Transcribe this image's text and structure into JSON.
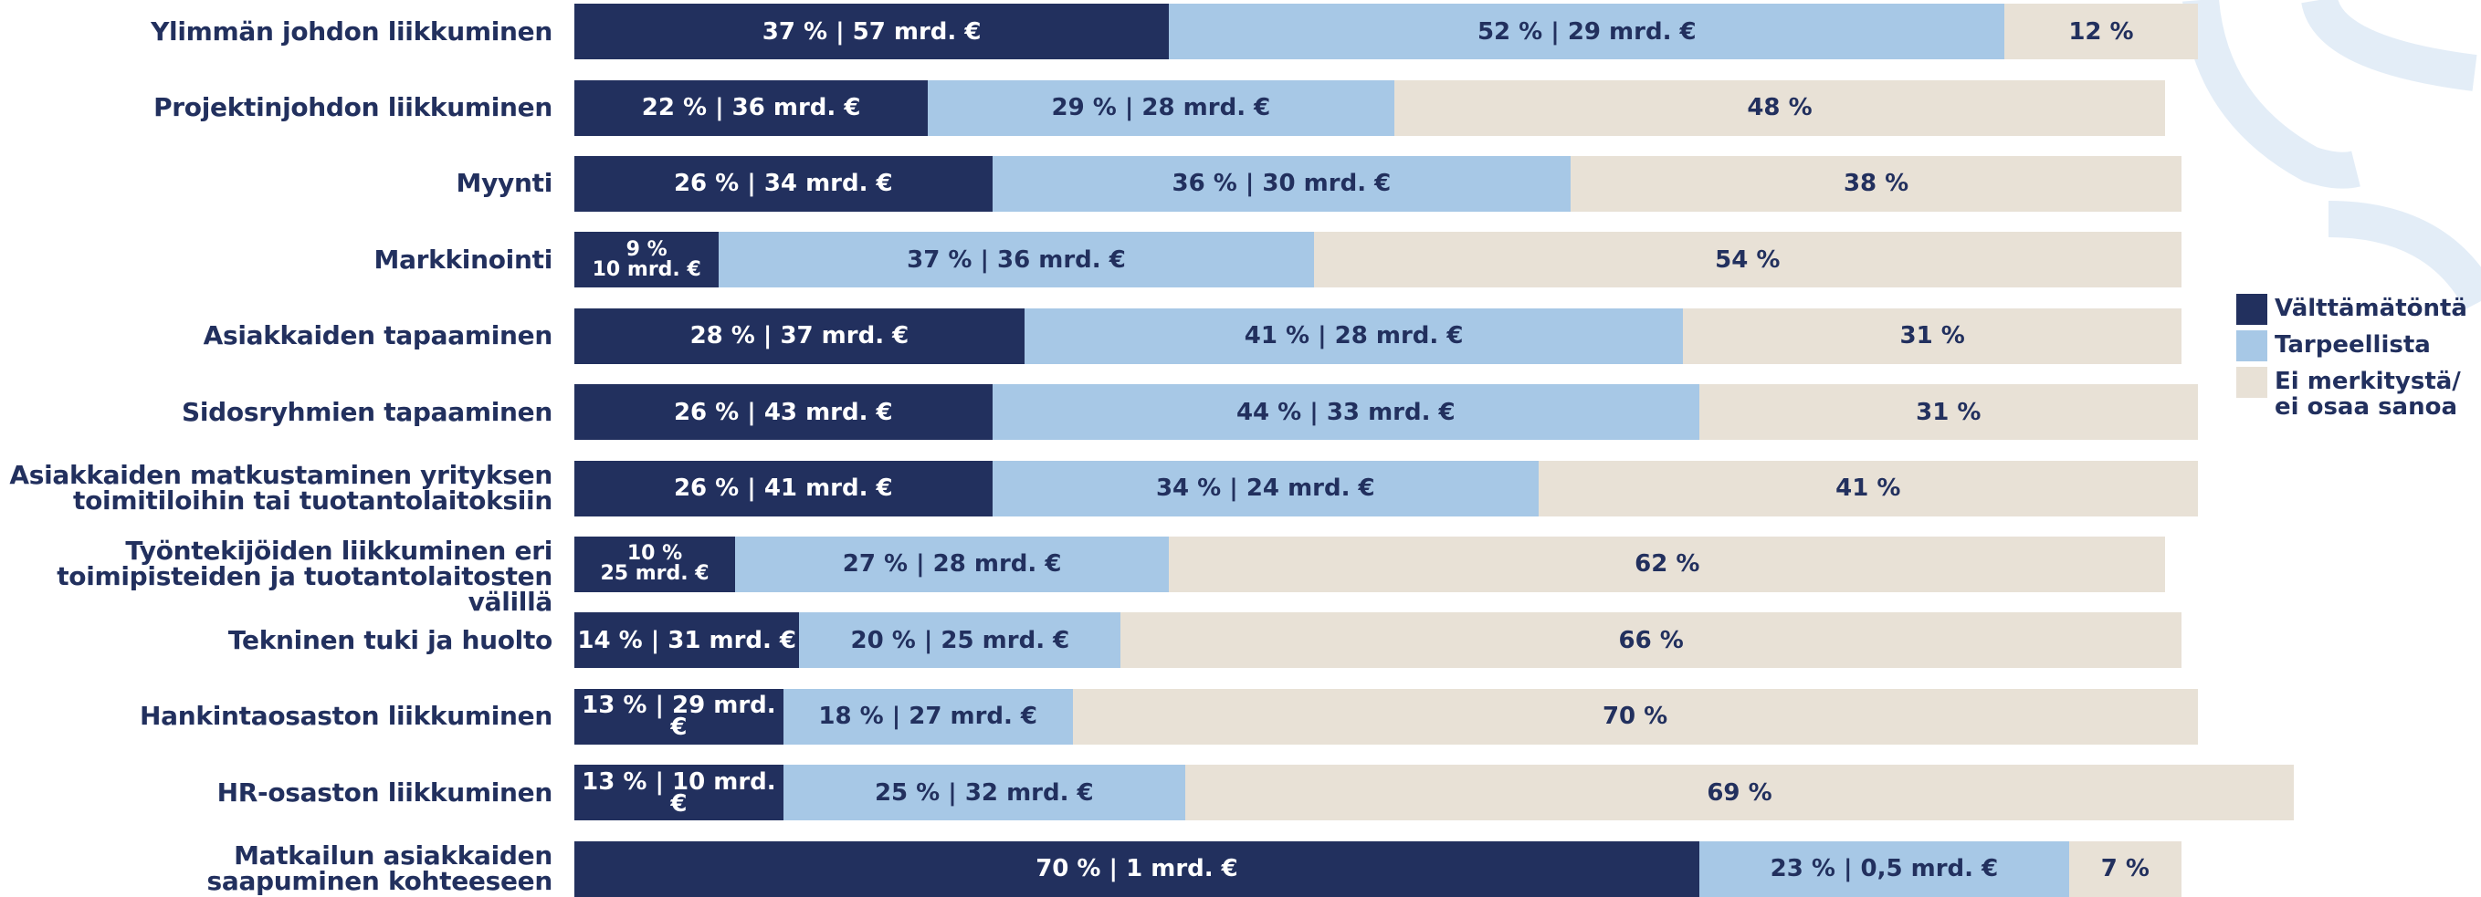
{
  "chart_data": {
    "type": "stacked-bar-horizontal",
    "categories": [
      "Ylimmän johdon liikkuminen",
      "Projektinjohdon liikkuminen",
      "Myynti",
      "Markkinointi",
      "Asiakkaiden tapaaminen",
      "Sidosryhmien tapaaminen",
      "Asiakkaiden matkustaminen yrityksen\ntoimitiloihin tai tuotantolaitoksiin",
      "Työntekijöiden liikkuminen eri\ntoimipisteiden ja tuotantolaitosten välillä",
      "Tekninen tuki ja huolto",
      "Hankintaosaston liikkuminen",
      "HR-osaston liikkuminen",
      "Matkailun asiakkaiden\nsaapuminen kohteeseen"
    ],
    "series": [
      {
        "name": "Välttämätöntä",
        "color": "#22305e",
        "text_color": "#ffffff",
        "values": [
          37,
          22,
          26,
          9,
          28,
          26,
          26,
          10,
          14,
          13,
          13,
          70
        ],
        "value_labels": [
          "37 % | 57 mrd. €",
          "22 % | 36 mrd. €",
          "26 % | 34 mrd. €",
          "9 %\n10 mrd. €",
          "28 % | 37 mrd. €",
          "26 % | 43 mrd. €",
          "26 % | 41 mrd. €",
          "10 %\n25 mrd. €",
          "14 % | 31 mrd. €",
          "13 % | 29 mrd. €",
          "13 % | 10 mrd. €",
          "70 % | 1 mrd. €"
        ]
      },
      {
        "name": "Tarpeellista",
        "color": "#a7c8e6",
        "text_color": "#22305e",
        "values": [
          52,
          29,
          36,
          37,
          41,
          44,
          34,
          27,
          20,
          18,
          25,
          23
        ],
        "value_labels": [
          "52 % | 29 mrd. €",
          "29 % | 28 mrd. €",
          "36 % | 30 mrd. €",
          "37 % | 36 mrd. €",
          "41 % | 28 mrd. €",
          "44 % | 33 mrd. €",
          "34 % | 24 mrd. €",
          "27 % | 28 mrd. €",
          "20 % | 25 mrd. €",
          "18 % | 27 mrd. €",
          "25 % | 32 mrd. €",
          "23 % | 0,5 mrd. €"
        ]
      },
      {
        "name": "Ei merkitystä/\nei osaa sanoa",
        "color": "#e8e1d6",
        "text_color": "#22305e",
        "values": [
          12,
          48,
          38,
          54,
          31,
          31,
          41,
          62,
          66,
          70,
          69,
          7
        ],
        "value_labels": [
          "12 %",
          "48 %",
          "38 %",
          "54 %",
          "31 %",
          "31 %",
          "41 %",
          "62 %",
          "66 %",
          "70 %",
          "69 %",
          "7 %"
        ]
      }
    ]
  }
}
